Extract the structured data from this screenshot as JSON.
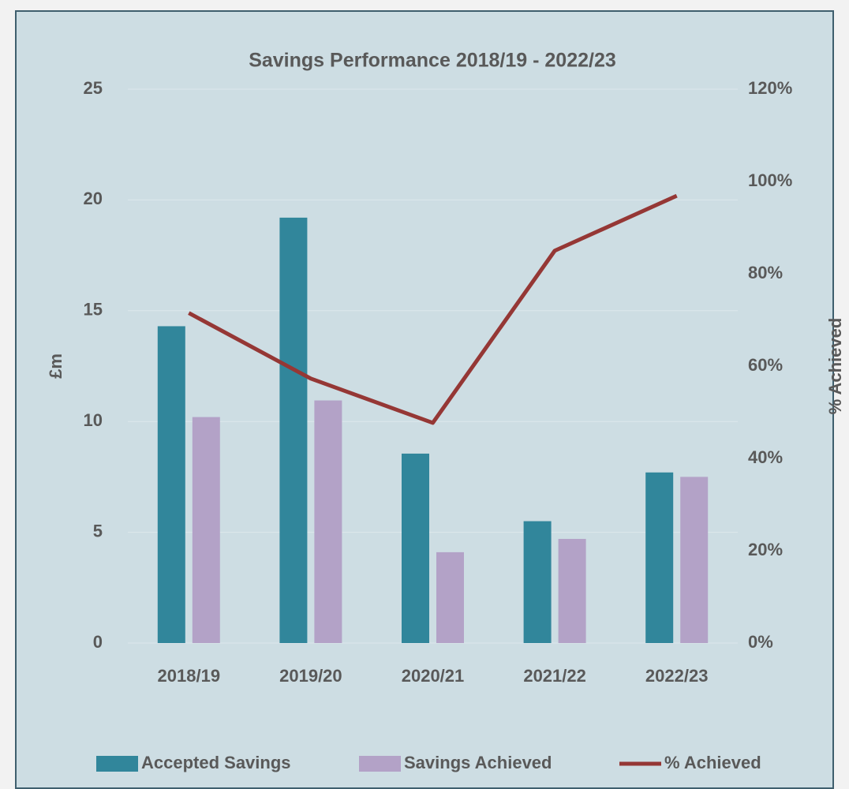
{
  "chart_data": {
    "type": "bar",
    "title": "Savings Performance 2018/19 - 2022/23",
    "y_label": "£m",
    "y2_label": "% Achieved",
    "categories": [
      "2018/19",
      "2019/20",
      "2020/21",
      "2021/22",
      "2022/23"
    ],
    "series": [
      {
        "name": "Accepted Savings",
        "color": "#31869b",
        "type": "bar",
        "values": [
          14.3,
          19.2,
          8.55,
          5.5,
          7.7
        ]
      },
      {
        "name": "Savings Achieved",
        "color": "#b3a2c7",
        "type": "bar",
        "values": [
          10.2,
          10.95,
          4.1,
          4.7,
          7.5
        ]
      },
      {
        "name": "% Achieved",
        "color": "#953735",
        "type": "line",
        "axis": "y2",
        "values": [
          71.5,
          57.3,
          47.7,
          85,
          96.9
        ]
      }
    ],
    "ylim": [
      0,
      25
    ],
    "yticks": [
      0,
      5,
      10,
      15,
      20,
      25
    ],
    "y2lim": [
      0,
      120
    ],
    "y2ticks": [
      {
        "value": 0,
        "label": "0%"
      },
      {
        "value": 20,
        "label": "20%"
      },
      {
        "value": 40,
        "label": "40%"
      },
      {
        "value": 60,
        "label": "60%"
      },
      {
        "value": 80,
        "label": "80%"
      },
      {
        "value": 100,
        "label": "100%"
      },
      {
        "value": 120,
        "label": "120%"
      }
    ],
    "grid": true,
    "legend": "bottom"
  }
}
